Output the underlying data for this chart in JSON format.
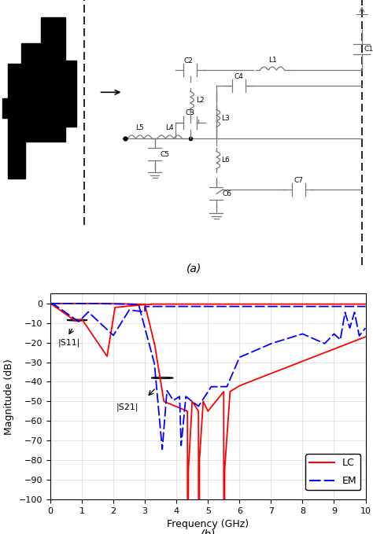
{
  "xlabel": "Frequency (GHz)",
  "ylabel": "Magnitude (dB)",
  "xlim": [
    0,
    10
  ],
  "ylim": [
    -100,
    5
  ],
  "yticks": [
    0,
    -10,
    -20,
    -30,
    -40,
    -50,
    -60,
    -70,
    -80,
    -90,
    -100
  ],
  "xticks": [
    0,
    1,
    2,
    3,
    4,
    5,
    6,
    7,
    8,
    9,
    10
  ],
  "lc_color": "#FF0000",
  "em_color": "#0000FF",
  "legend_lc": "LC",
  "legend_em": "EM",
  "label_s11": "|S11|",
  "label_s21": "|S21|"
}
